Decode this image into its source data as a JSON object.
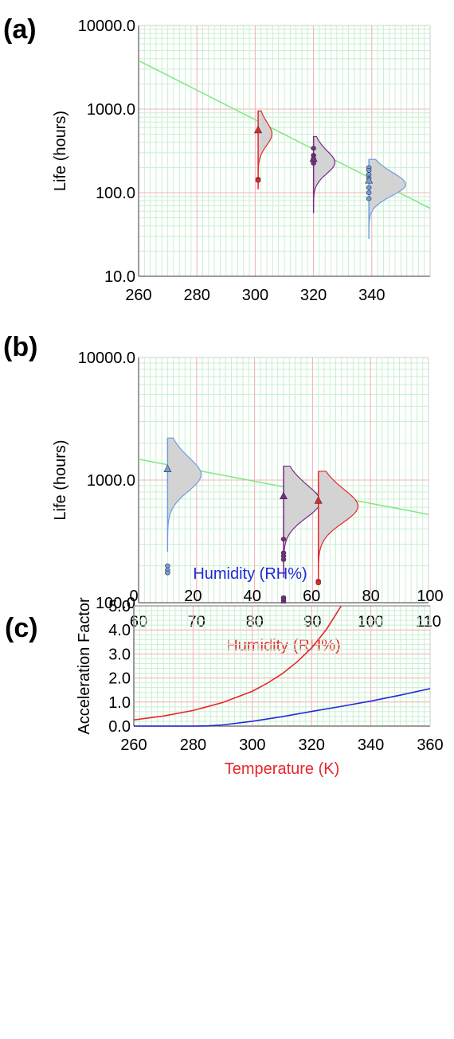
{
  "chart_data": [
    {
      "panel": "(a)",
      "type": "scatter",
      "title": "",
      "xlabel": "",
      "ylabel": "Life (hours)",
      "x_scale": "linear",
      "y_scale": "log",
      "xlim": [
        260,
        360
      ],
      "ylim": [
        10,
        10000
      ],
      "x_ticks": [
        "260",
        "280",
        "300",
        "320",
        "340"
      ],
      "y_ticks": [
        "10.0",
        "100.0",
        "1000.0",
        "10000.0"
      ],
      "fit_line": {
        "x": [
          260,
          360
        ],
        "y": [
          3800,
          65
        ],
        "color": "#7ee87e"
      },
      "series": [
        {
          "x": 301,
          "mean": 560,
          "fail": [
            145,
            140
          ],
          "color": "#e8262b",
          "fill": "#d3d3d3",
          "dist_range": [
            110,
            950
          ],
          "dist_width": 4.5
        },
        {
          "x": 320,
          "mean": 255,
          "fail": [
            340,
            280,
            255,
            240,
            225
          ],
          "color": "#7a2a88",
          "fill": "#d3d3d3",
          "dist_range": [
            57,
            470
          ],
          "dist_width": 7
        },
        {
          "x": 339,
          "mean": 140,
          "fail": [
            200,
            185,
            165,
            150,
            115,
            100,
            85
          ],
          "color": "#6f9ee0",
          "fill": "#d3d3d3",
          "dist_range": [
            28,
            250
          ],
          "dist_width": 12
        }
      ]
    },
    {
      "panel": "(b)",
      "type": "scatter",
      "title": "",
      "xlabel": "Humidity (RH%)",
      "ylabel": "Life (hours)",
      "x_scale": "linear",
      "y_scale": "log",
      "xlim": [
        60,
        110
      ],
      "ylim": [
        100,
        10000
      ],
      "x_ticks": [
        "60",
        "70",
        "80",
        "90",
        "100",
        "110"
      ],
      "y_ticks": [
        "100.0",
        "1000.0",
        "10000.0"
      ],
      "fit_line": {
        "x": [
          60,
          110
        ],
        "y": [
          1480,
          525
        ],
        "color": "#7ee87e"
      },
      "series": [
        {
          "x": 65,
          "mean": 1230,
          "fail": [
            200,
            185,
            175
          ],
          "color": "#6f9ee0",
          "fill": "#d3d3d3",
          "dist_range": [
            260,
            2200
          ],
          "dist_width": 5.5
        },
        {
          "x": 85,
          "mean": 740,
          "fail": [
            330,
            255,
            240,
            225,
            110,
            105,
            100
          ],
          "color": "#7a2a88",
          "fill": "#d3d3d3",
          "dist_range": [
            160,
            1300
          ],
          "dist_width": 6
        },
        {
          "x": 91,
          "mean": 680,
          "fail": [
            150,
            145
          ],
          "color": "#e8262b",
          "fill": "#d3d3d3",
          "dist_range": [
            140,
            1180
          ],
          "dist_width": 6.5
        }
      ]
    },
    {
      "panel": "(c)",
      "type": "line",
      "title": "",
      "xlabel": "Temperature (K)",
      "x2label": "Humidity (RH%)",
      "ylabel": "Acceleration Factor",
      "xlim": [
        260,
        360
      ],
      "x2lim": [
        0,
        100
      ],
      "ylim": [
        0,
        5
      ],
      "x_ticks": [
        "260",
        "280",
        "300",
        "320",
        "340",
        "360"
      ],
      "x2_ticks": [
        "0",
        "20",
        "40",
        "60",
        "80",
        "100"
      ],
      "y_ticks": [
        "0.0",
        "1.0",
        "2.0",
        "3.0",
        "4.0",
        "5.0"
      ],
      "series": [
        {
          "axis": "temperature",
          "color": "#e8262b",
          "x": [
            260,
            270,
            280,
            290,
            300,
            305,
            310,
            315,
            320,
            325,
            330
          ],
          "y": [
            0.26,
            0.42,
            0.65,
            0.98,
            1.45,
            1.78,
            2.17,
            2.66,
            3.25,
            4.02,
            5.0
          ]
        },
        {
          "axis": "humidity",
          "color": "#1f2bd6",
          "x": [
            0,
            10,
            20,
            25,
            30,
            40,
            50,
            60,
            70,
            80,
            90,
            100
          ],
          "y": [
            0.0,
            0.0,
            0.0,
            0.01,
            0.05,
            0.2,
            0.39,
            0.61,
            0.82,
            1.04,
            1.29,
            1.56
          ]
        }
      ]
    }
  ]
}
